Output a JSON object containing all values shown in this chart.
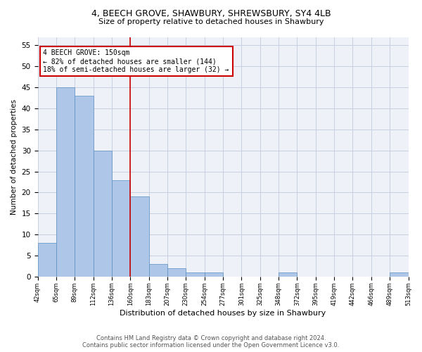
{
  "title": "4, BEECH GROVE, SHAWBURY, SHREWSBURY, SY4 4LB",
  "subtitle": "Size of property relative to detached houses in Shawbury",
  "xlabel": "Distribution of detached houses by size in Shawbury",
  "ylabel": "Number of detached properties",
  "bar_values": [
    8,
    45,
    43,
    30,
    23,
    19,
    3,
    2,
    1,
    1,
    0,
    0,
    0,
    1,
    0,
    0,
    0,
    0,
    0,
    1
  ],
  "bar_labels": [
    "42sqm",
    "65sqm",
    "89sqm",
    "112sqm",
    "136sqm",
    "160sqm",
    "183sqm",
    "207sqm",
    "230sqm",
    "254sqm",
    "277sqm",
    "301sqm",
    "325sqm",
    "348sqm",
    "372sqm",
    "395sqm",
    "419sqm",
    "442sqm",
    "466sqm",
    "489sqm",
    "513sqm"
  ],
  "bar_color": "#aec6e8",
  "bar_edge_color": "#5a8fc0",
  "bar_edge_width": 0.5,
  "grid_color": "#c8d0e0",
  "bg_color": "#eef1f7",
  "annotation_box_color": "#cc0000",
  "vline_color": "#cc0000",
  "annotation_text": "4 BEECH GROVE: 150sqm\n← 82% of detached houses are smaller (144)\n18% of semi-detached houses are larger (32) →",
  "footer_text": "Contains HM Land Registry data © Crown copyright and database right 2024.\nContains public sector information licensed under the Open Government Licence v3.0.",
  "ylim": [
    0,
    57
  ],
  "yticks": [
    0,
    5,
    10,
    15,
    20,
    25,
    30,
    35,
    40,
    45,
    50,
    55
  ],
  "title_fontsize": 9,
  "subtitle_fontsize": 8,
  "ylabel_fontsize": 7.5,
  "xlabel_fontsize": 8,
  "ytick_fontsize": 7.5,
  "xtick_fontsize": 6
}
